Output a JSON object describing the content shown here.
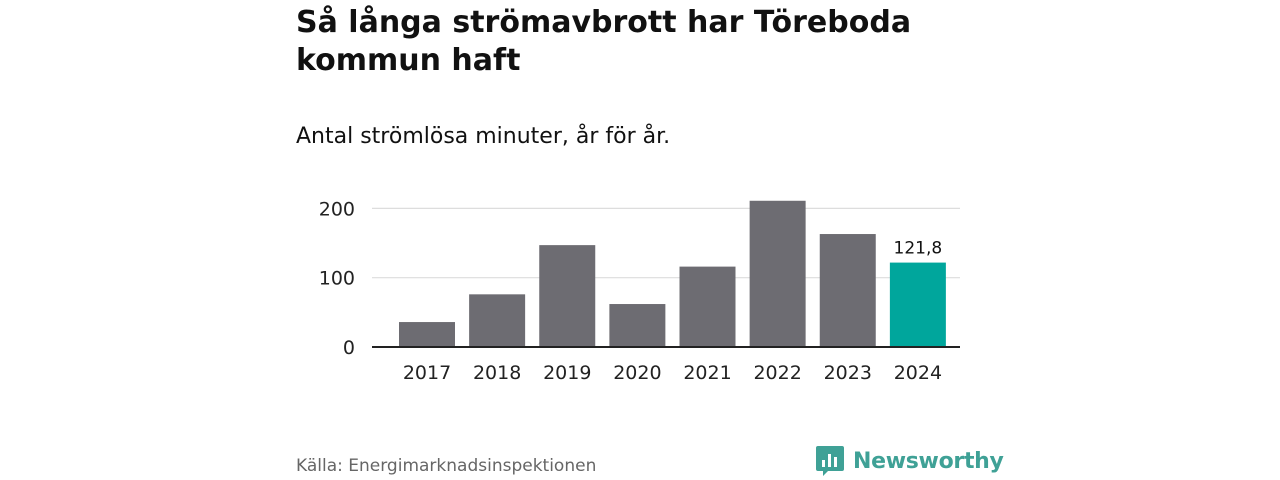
{
  "header": {
    "title": "Så långa strömavbrott har Töreboda kommun haft",
    "subtitle": "Antal strömlösa minuter, år för år."
  },
  "chart_data": {
    "type": "bar",
    "categories": [
      "2017",
      "2018",
      "2019",
      "2020",
      "2021",
      "2022",
      "2023",
      "2024"
    ],
    "values": [
      36,
      76,
      147,
      62,
      116,
      211,
      163,
      121.8
    ],
    "highlight_index": 7,
    "value_labels": {
      "7": "121,8"
    },
    "yticks": [
      0,
      100,
      200
    ],
    "ylim": [
      0,
      215
    ],
    "grid": true,
    "colors": {
      "bar": "#6d6c72",
      "highlight": "#00a69c",
      "grid": "#dddddd",
      "axis": "#222222"
    }
  },
  "footer": {
    "source": "Källa: Energimarknadsinspektionen",
    "brand": "Newsworthy",
    "brand_icon": "newsworthy-logo-icon",
    "brand_color": "#3fa196"
  }
}
